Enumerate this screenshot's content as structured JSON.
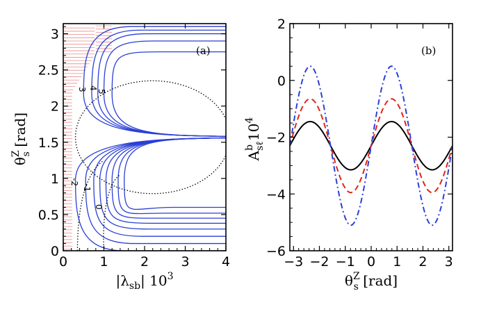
{
  "colors": {
    "contour": "#2a3fd6",
    "hatch": "#e88b8b",
    "dotted": "#000000",
    "black": "#000000",
    "red": "#e0241a",
    "blue": "#2a3fd6"
  },
  "chart_data": [
    {
      "type": "line",
      "panel_label": "(a)",
      "xlabel_main": "|λ",
      "xlabel_sub": "sb",
      "xlabel_post": "| 10",
      "xlabel_sup": "3",
      "ylabel_main": "θ",
      "ylabel_sup": "Z",
      "ylabel_sub": "s",
      "ylabel_post": " [rad]",
      "xlim": [
        0,
        4
      ],
      "ylim": [
        0,
        3.14
      ],
      "xticks": [
        "0",
        "1",
        "2",
        "3",
        "4"
      ],
      "yticks": [
        "0",
        "0.5",
        "1",
        "1.5",
        "2",
        "2.5",
        "3"
      ],
      "contour_labels": [
        "3",
        "4",
        "5",
        "-2",
        "-1",
        "0"
      ],
      "series": [
        {
          "style": "contour-solid-blue",
          "shape": "horn-up",
          "x_start": [
            0.5,
            0.7,
            0.85,
            1.0,
            1.2
          ],
          "y_end": [
            3.1,
            3.05,
            3.0,
            2.9,
            2.75
          ]
        },
        {
          "style": "contour-solid-blue",
          "shape": "horn-down",
          "x_start": [
            0.3,
            0.55,
            0.75,
            0.9,
            1.05,
            1.2,
            1.35,
            1.5
          ],
          "y_end": [
            0.0,
            0.1,
            0.2,
            0.3,
            0.38,
            0.45,
            0.52,
            0.6
          ]
        },
        {
          "style": "dotted-black",
          "shape": "ellipse",
          "center": [
            2.2,
            1.57
          ],
          "half_height": 0.78
        },
        {
          "style": "hatch-red",
          "region": "left-excluded"
        }
      ]
    },
    {
      "type": "line",
      "panel_label": "(b)",
      "xlabel_main": "θ",
      "xlabel_sup": "Z",
      "xlabel_sub": "s",
      "xlabel_post": " [rad]",
      "ylabel_main": "A",
      "ylabel_sup": "b",
      "ylabel_sub": "sℓ",
      "ylabel_post": "10",
      "ylabel_post_sup": "4",
      "xlim": [
        -3.1416,
        3.1416
      ],
      "ylim": [
        -6,
        2
      ],
      "xticks": [
        "−3",
        "−2",
        "−1",
        "0",
        "1",
        "2",
        "3"
      ],
      "yticks": [
        "−6",
        "−4",
        "−2",
        "0",
        "2"
      ],
      "x_tick_values": [
        -3,
        -2,
        -1,
        0,
        1,
        2,
        3
      ],
      "y_tick_values": [
        -6,
        -4,
        -2,
        0,
        2
      ],
      "series": [
        {
          "style": "solid",
          "color": "#000000",
          "offset": -2.3,
          "amplitude": 0.85,
          "phase": 0
        },
        {
          "style": "dashed",
          "color": "#e0241a",
          "offset": -2.3,
          "amplitude": 1.65,
          "phase": 0
        },
        {
          "style": "dash-dot",
          "color": "#2a3fd6",
          "offset": -2.3,
          "amplitude": 2.8,
          "phase": 0
        }
      ]
    }
  ]
}
